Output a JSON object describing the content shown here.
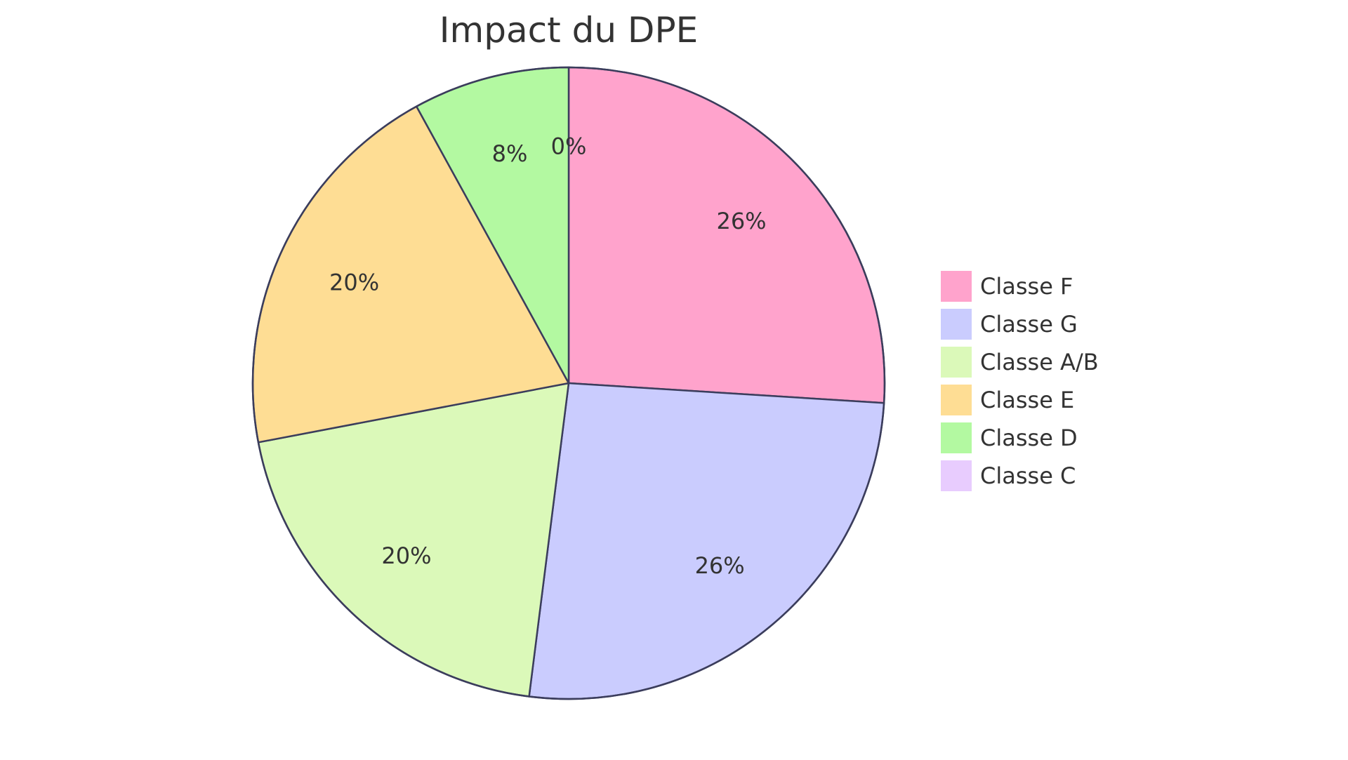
{
  "chart_data": {
    "type": "pie",
    "title": "Impact du DPE",
    "slices": [
      {
        "label": "Classe F",
        "value": 26,
        "display": "26%",
        "color": "#FFA3CC"
      },
      {
        "label": "Classe G",
        "value": 26,
        "display": "26%",
        "color": "#CACCFE"
      },
      {
        "label": "Classe A/B",
        "value": 20,
        "display": "20%",
        "color": "#DBF9B9"
      },
      {
        "label": "Classe E",
        "value": 20,
        "display": "20%",
        "color": "#FEDD94"
      },
      {
        "label": "Classe D",
        "value": 8,
        "display": "8%",
        "color": "#B3F9A1"
      },
      {
        "label": "Classe C",
        "value": 0,
        "display": "0%",
        "color": "#E8CCFE"
      }
    ],
    "legend_position": "right",
    "stroke_color": "#3B3D5C"
  }
}
